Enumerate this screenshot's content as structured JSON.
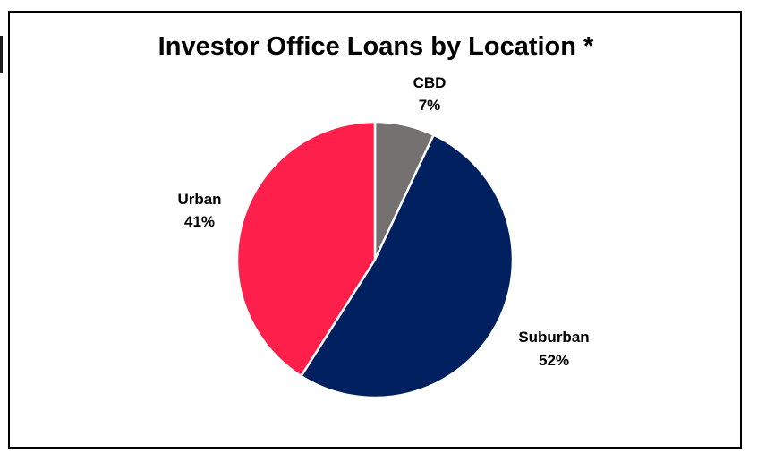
{
  "chart_data": {
    "type": "pie",
    "title": "Investor Office Loans by Location *",
    "categories": [
      "CBD",
      "Suburban",
      "Urban"
    ],
    "values": [
      7,
      52,
      41
    ],
    "value_labels": [
      "7%",
      "52%",
      "41%"
    ],
    "colors": [
      "#767171",
      "#002060",
      "#FF1F4B"
    ],
    "start_angle_deg": 0,
    "direction": "clockwise",
    "legend": "none"
  }
}
